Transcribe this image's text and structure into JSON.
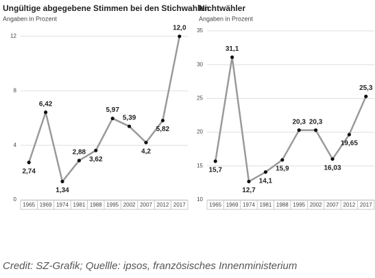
{
  "chart_data": [
    {
      "type": "line",
      "title": "Ungültige abgegebene Stimmen bei den Stichwahlen",
      "subtitle": "Angaben in Prozent",
      "categories": [
        "1965",
        "1969",
        "1974",
        "1981",
        "1988",
        "1995",
        "2002",
        "2007",
        "2012",
        "2017"
      ],
      "values": [
        2.74,
        6.42,
        1.34,
        2.88,
        3.62,
        5.97,
        5.39,
        4.2,
        5.82,
        12.0
      ],
      "value_labels": [
        "2,74",
        "6,42",
        "1,34",
        "2,88",
        "3,62",
        "5,97",
        "5,39",
        "4,2",
        "5,82",
        "12,0"
      ],
      "color": "#999999",
      "marker_color": "#111111",
      "ylim": [
        0,
        12.4
      ],
      "yticks": [
        0,
        4,
        8,
        12
      ],
      "grid": true
    },
    {
      "type": "line",
      "title": "Nichtwähler",
      "subtitle": "Angaben in Prozent",
      "categories": [
        "1965",
        "1969",
        "1974",
        "1981",
        "1988",
        "1995",
        "2002",
        "2007",
        "2012",
        "2017"
      ],
      "values": [
        15.7,
        31.1,
        12.7,
        14.1,
        15.9,
        20.3,
        20.3,
        16.03,
        19.65,
        25.3
      ],
      "value_labels": [
        "15,7",
        "31,1",
        "12,7",
        "14,1",
        "15,9",
        "20,3",
        "20,3",
        "16,03",
        "19,65",
        "25,3"
      ],
      "color": "#999999",
      "marker_color": "#111111",
      "ylim": [
        10,
        35
      ],
      "yticks": [
        10,
        15,
        20,
        25,
        30,
        35
      ],
      "grid": true
    }
  ],
  "credit": "Credit: SZ-Grafik; Quellle: ipsos, französisches Innenministerium"
}
